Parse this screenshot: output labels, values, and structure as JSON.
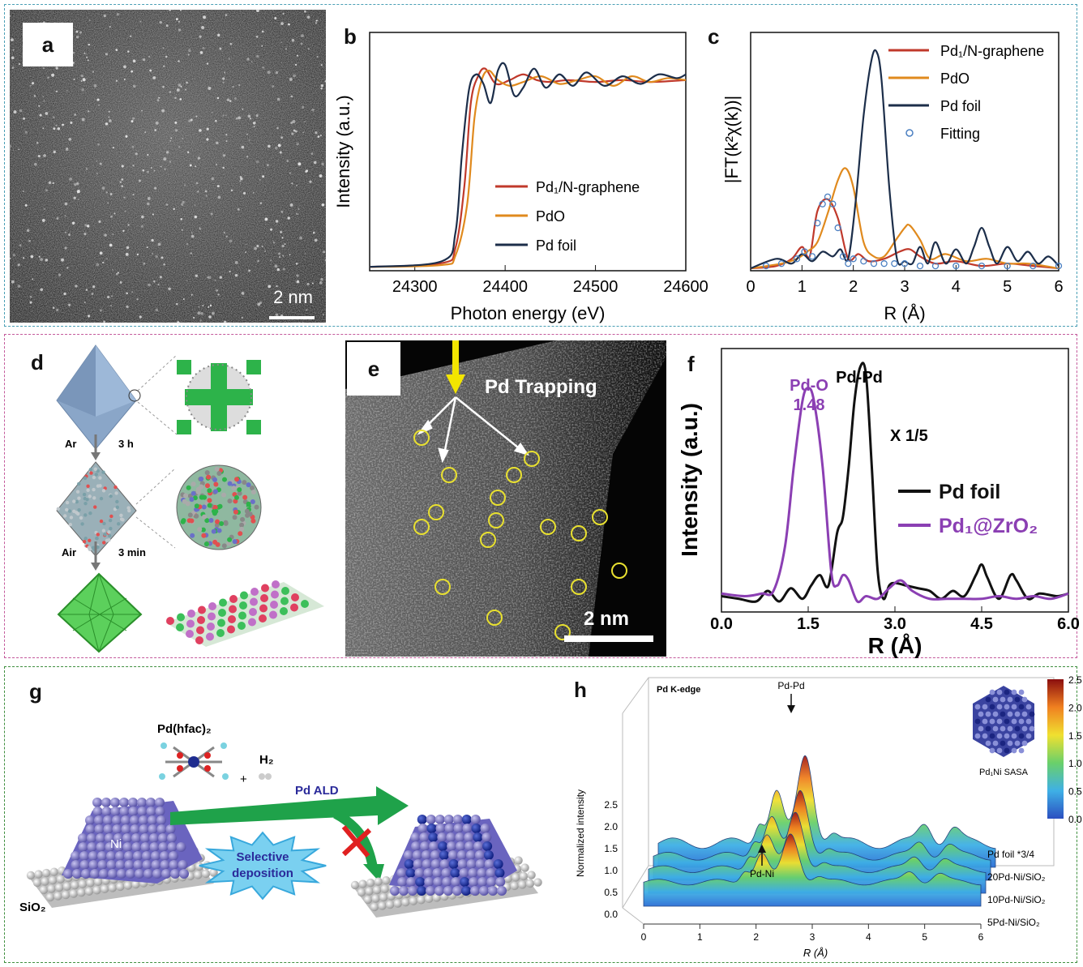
{
  "panels": {
    "a": {
      "label": "a",
      "scalebar": "2 nm"
    },
    "b": {
      "label": "b",
      "ylabel": "Intensity (a.u.)",
      "xlabel": "Photon energy (eV)",
      "ticks": [
        "24300",
        "24400",
        "24500",
        "24600"
      ],
      "legend": [
        "Pd₁/N-graphene",
        "PdO",
        "Pd foil"
      ]
    },
    "c": {
      "label": "c",
      "ylabel": "|FT(k²χ(k))|",
      "xlabel": "R (Å)",
      "ticks": [
        "0",
        "1",
        "2",
        "3",
        "4",
        "5",
        "6"
      ],
      "legend": [
        "Pd₁/N-graphene",
        "PdO",
        "Pd foil",
        "Fitting"
      ]
    },
    "d": {
      "label": "d",
      "step1_gas": "Ar",
      "step1_time": "3 h",
      "step2_gas": "Air",
      "step2_time": "3 min"
    },
    "e": {
      "label": "e",
      "title": "Pd Trapping",
      "scalebar": "2 nm"
    },
    "f": {
      "label": "f",
      "ylabel": "Intensity (a.u.)",
      "xlabel": "R (Å)",
      "ticks": [
        "0.0",
        "1.5",
        "3.0",
        "4.5",
        "6.0"
      ],
      "ann_pdo": "Pd-O",
      "ann_pdo_val": "1.48",
      "ann_pdpd": "Pd-Pd",
      "ann_scale": "X 1/5",
      "legend": [
        "Pd foil",
        "Pd₁@ZrO₂"
      ]
    },
    "g": {
      "label": "g",
      "precursor": "Pd(hfac)₂",
      "plus": "+",
      "h2": "H₂",
      "ni": "Ni",
      "sio2": "SiO₂",
      "ald": "Pd ALD",
      "selective": [
        "Selective",
        "deposition"
      ]
    },
    "h": {
      "label": "h",
      "edge": "Pd K-edge",
      "peak_pdpd": "Pd-Pd",
      "peak_pdni": "Pd-Ni",
      "ylabel": "Normalized intensity",
      "xlabel": "R (Å)",
      "yticks": [
        "2.5",
        "2.0",
        "1.5",
        "1.0",
        "0.5",
        "0.0"
      ],
      "xticks": [
        "0",
        "1",
        "2",
        "3",
        "4",
        "5",
        "6"
      ],
      "colorbar_ticks": [
        "2.5",
        "2.0",
        "1.5",
        "1.0",
        "0.5",
        "0.0"
      ],
      "inset": "Pd₁Ni SASA",
      "series": [
        "Pd foil *3/4",
        "20Pd-Ni/SiO₂",
        "10Pd-Ni/SiO₂",
        "5Pd-Ni/SiO₂"
      ]
    }
  },
  "chart_data": [
    {
      "type": "line",
      "panel": "b",
      "xlabel": "Photon energy (eV)",
      "ylabel": "Intensity (a.u.)",
      "xlim": [
        24250,
        24600
      ],
      "ylim": [
        0,
        1.25
      ],
      "series": [
        {
          "name": "Pd1/N-graphene",
          "color": "#c0392b",
          "x": [
            24250,
            24330,
            24345,
            24355,
            24362,
            24370,
            24378,
            24390,
            24405,
            24420,
            24435,
            24450,
            24470,
            24500,
            24530,
            24560,
            24600
          ],
          "y": [
            0.02,
            0.04,
            0.12,
            0.45,
            0.88,
            1.02,
            1.06,
            0.98,
            1.0,
            1.03,
            1.0,
            0.99,
            1.0,
            0.99,
            1.0,
            0.99,
            1.0
          ]
        },
        {
          "name": "PdO",
          "color": "#e08a1e",
          "x": [
            24250,
            24330,
            24345,
            24358,
            24366,
            24374,
            24382,
            24392,
            24405,
            24420,
            24440,
            24460,
            24480,
            24500,
            24520,
            24540,
            24560,
            24580,
            24600
          ],
          "y": [
            0.02,
            0.03,
            0.08,
            0.35,
            0.8,
            1.0,
            1.05,
            1.0,
            0.97,
            0.99,
            1.02,
            0.98,
            1.0,
            1.02,
            0.97,
            1.02,
            0.99,
            1.01,
            1.0
          ]
        },
        {
          "name": "Pd foil",
          "color": "#1c2e4a",
          "x": [
            24250,
            24330,
            24345,
            24352,
            24360,
            24368,
            24376,
            24384,
            24392,
            24400,
            24410,
            24420,
            24432,
            24445,
            24460,
            24475,
            24490,
            24510,
            24530,
            24550,
            24570,
            24590,
            24600
          ],
          "y": [
            0.02,
            0.05,
            0.2,
            0.6,
            0.95,
            1.03,
            0.98,
            0.88,
            1.05,
            1.08,
            0.92,
            0.96,
            1.06,
            0.96,
            1.03,
            0.97,
            1.04,
            0.97,
            1.02,
            0.98,
            1.03,
            1.01,
            1.03
          ]
        }
      ]
    },
    {
      "type": "line",
      "panel": "c",
      "xlabel": "R (Å)",
      "ylabel": "|FT(k²χ(k))|",
      "xlim": [
        0,
        6
      ],
      "ylim": [
        0,
        1.0
      ],
      "series": [
        {
          "name": "Pd1/N-graphene",
          "color": "#c0392b",
          "x": [
            0,
            0.5,
            0.8,
            1.0,
            1.15,
            1.3,
            1.5,
            1.7,
            1.9,
            2.1,
            2.3,
            2.6,
            2.9,
            3.1,
            3.3,
            3.6,
            4.0,
            4.5,
            5.0,
            5.5,
            6.0
          ],
          "y": [
            0.01,
            0.02,
            0.05,
            0.1,
            0.06,
            0.25,
            0.3,
            0.22,
            0.05,
            0.07,
            0.04,
            0.05,
            0.08,
            0.09,
            0.06,
            0.03,
            0.04,
            0.02,
            0.03,
            0.02,
            0.01
          ]
        },
        {
          "name": "PdO",
          "color": "#e08a1e",
          "x": [
            0,
            0.6,
            0.9,
            1.1,
            1.3,
            1.5,
            1.7,
            1.85,
            2.0,
            2.2,
            2.4,
            2.6,
            2.8,
            3.0,
            3.1,
            3.3,
            3.5,
            3.8,
            4.2,
            4.6,
            5.0,
            5.4,
            6.0
          ],
          "y": [
            0.01,
            0.03,
            0.05,
            0.08,
            0.12,
            0.24,
            0.38,
            0.43,
            0.35,
            0.12,
            0.06,
            0.06,
            0.12,
            0.18,
            0.19,
            0.13,
            0.05,
            0.07,
            0.04,
            0.05,
            0.03,
            0.03,
            0.01
          ]
        },
        {
          "name": "Pd foil",
          "color": "#1c2e4a",
          "x": [
            0,
            0.5,
            0.8,
            1.0,
            1.2,
            1.4,
            1.6,
            1.75,
            1.9,
            2.05,
            2.2,
            2.35,
            2.45,
            2.55,
            2.7,
            2.85,
            3.0,
            3.15,
            3.3,
            3.45,
            3.6,
            3.8,
            4.0,
            4.2,
            4.35,
            4.5,
            4.65,
            4.8,
            5.0,
            5.2,
            5.4,
            5.6,
            5.8,
            6.0
          ],
          "y": [
            0.01,
            0.05,
            0.03,
            0.07,
            0.04,
            0.08,
            0.06,
            0.09,
            0.05,
            0.3,
            0.65,
            0.88,
            0.92,
            0.8,
            0.35,
            0.05,
            0.04,
            0.03,
            0.1,
            0.03,
            0.12,
            0.03,
            0.09,
            0.03,
            0.1,
            0.18,
            0.1,
            0.03,
            0.1,
            0.04,
            0.08,
            0.03,
            0.06,
            0.02
          ]
        },
        {
          "name": "Fitting",
          "color": "#4a7fc1",
          "marker": "circle",
          "x": [
            0.3,
            0.6,
            0.9,
            1.05,
            1.2,
            1.3,
            1.4,
            1.5,
            1.6,
            1.7,
            1.8,
            1.9,
            2.0,
            2.2,
            2.4,
            2.6,
            2.8,
            3.0,
            3.3,
            3.6,
            4.0,
            4.5,
            5.0,
            5.5,
            6.0
          ],
          "y": [
            0.02,
            0.03,
            0.05,
            0.08,
            0.06,
            0.2,
            0.28,
            0.31,
            0.28,
            0.18,
            0.06,
            0.03,
            0.05,
            0.04,
            0.03,
            0.03,
            0.03,
            0.03,
            0.02,
            0.02,
            0.02,
            0.02,
            0.02,
            0.02,
            0.02
          ]
        }
      ]
    },
    {
      "type": "line",
      "panel": "f",
      "xlabel": "R (Å)",
      "ylabel": "Intensity (a.u.)",
      "xlim": [
        0,
        6
      ],
      "ylim": [
        0,
        1.0
      ],
      "series": [
        {
          "name": "Pd foil",
          "color": "#111111",
          "x": [
            0,
            0.3,
            0.6,
            0.8,
            1.0,
            1.2,
            1.4,
            1.55,
            1.7,
            1.85,
            2.0,
            2.1,
            2.2,
            2.3,
            2.4,
            2.5,
            2.6,
            2.7,
            2.8,
            2.9,
            3.0,
            3.2,
            3.4,
            3.6,
            3.8,
            4.0,
            4.2,
            4.4,
            4.5,
            4.6,
            4.8,
            5.0,
            5.1,
            5.3,
            5.5,
            5.8,
            6.0
          ],
          "y": [
            0.06,
            0.05,
            0.04,
            0.08,
            0.04,
            0.09,
            0.05,
            0.1,
            0.14,
            0.1,
            0.3,
            0.36,
            0.55,
            0.8,
            0.93,
            0.9,
            0.55,
            0.16,
            0.05,
            0.1,
            0.11,
            0.1,
            0.09,
            0.08,
            0.05,
            0.08,
            0.06,
            0.14,
            0.18,
            0.13,
            0.05,
            0.14,
            0.12,
            0.05,
            0.07,
            0.06,
            0.07
          ]
        },
        {
          "name": "Pd1@ZrO2",
          "color": "#8b3fb3",
          "x": [
            0,
            0.4,
            0.7,
            0.9,
            1.1,
            1.25,
            1.4,
            1.5,
            1.6,
            1.75,
            1.9,
            2.0,
            2.1,
            2.2,
            2.35,
            2.5,
            2.7,
            2.9,
            3.1,
            3.3,
            3.6,
            3.9,
            4.2,
            4.5,
            4.8,
            5.1,
            5.4,
            5.7,
            6.0
          ],
          "y": [
            0.07,
            0.06,
            0.07,
            0.08,
            0.25,
            0.55,
            0.8,
            0.85,
            0.8,
            0.55,
            0.15,
            0.1,
            0.14,
            0.12,
            0.04,
            0.06,
            0.05,
            0.09,
            0.12,
            0.08,
            0.05,
            0.05,
            0.05,
            0.05,
            0.06,
            0.05,
            0.06,
            0.05,
            0.07
          ]
        }
      ]
    }
  ]
}
